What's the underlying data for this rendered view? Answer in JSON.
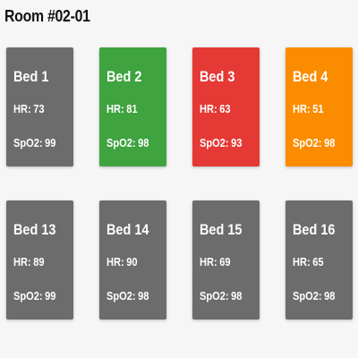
{
  "room": {
    "title": "Room #02-01"
  },
  "labels": {
    "hr": "HR:",
    "spo2": "SpO2:"
  },
  "status_colors": {
    "normal": "#6c6c6c",
    "ok": "#3fa33f",
    "critical": "#e53935",
    "warning": "#fb8c00"
  },
  "beds": [
    {
      "name": "Bed 1",
      "hr": "73",
      "spo2": "99",
      "status": "normal"
    },
    {
      "name": "Bed 2",
      "hr": "81",
      "spo2": "98",
      "status": "ok"
    },
    {
      "name": "Bed 3",
      "hr": "63",
      "spo2": "93",
      "status": "critical"
    },
    {
      "name": "Bed 4",
      "hr": "51",
      "spo2": "98",
      "status": "warning"
    },
    {
      "name": "Bed 13",
      "hr": "89",
      "spo2": "99",
      "status": "normal"
    },
    {
      "name": "Bed 14",
      "hr": "90",
      "spo2": "98",
      "status": "normal"
    },
    {
      "name": "Bed 15",
      "hr": "69",
      "spo2": "98",
      "status": "normal"
    },
    {
      "name": "Bed 16",
      "hr": "65",
      "spo2": "98",
      "status": "normal"
    }
  ]
}
